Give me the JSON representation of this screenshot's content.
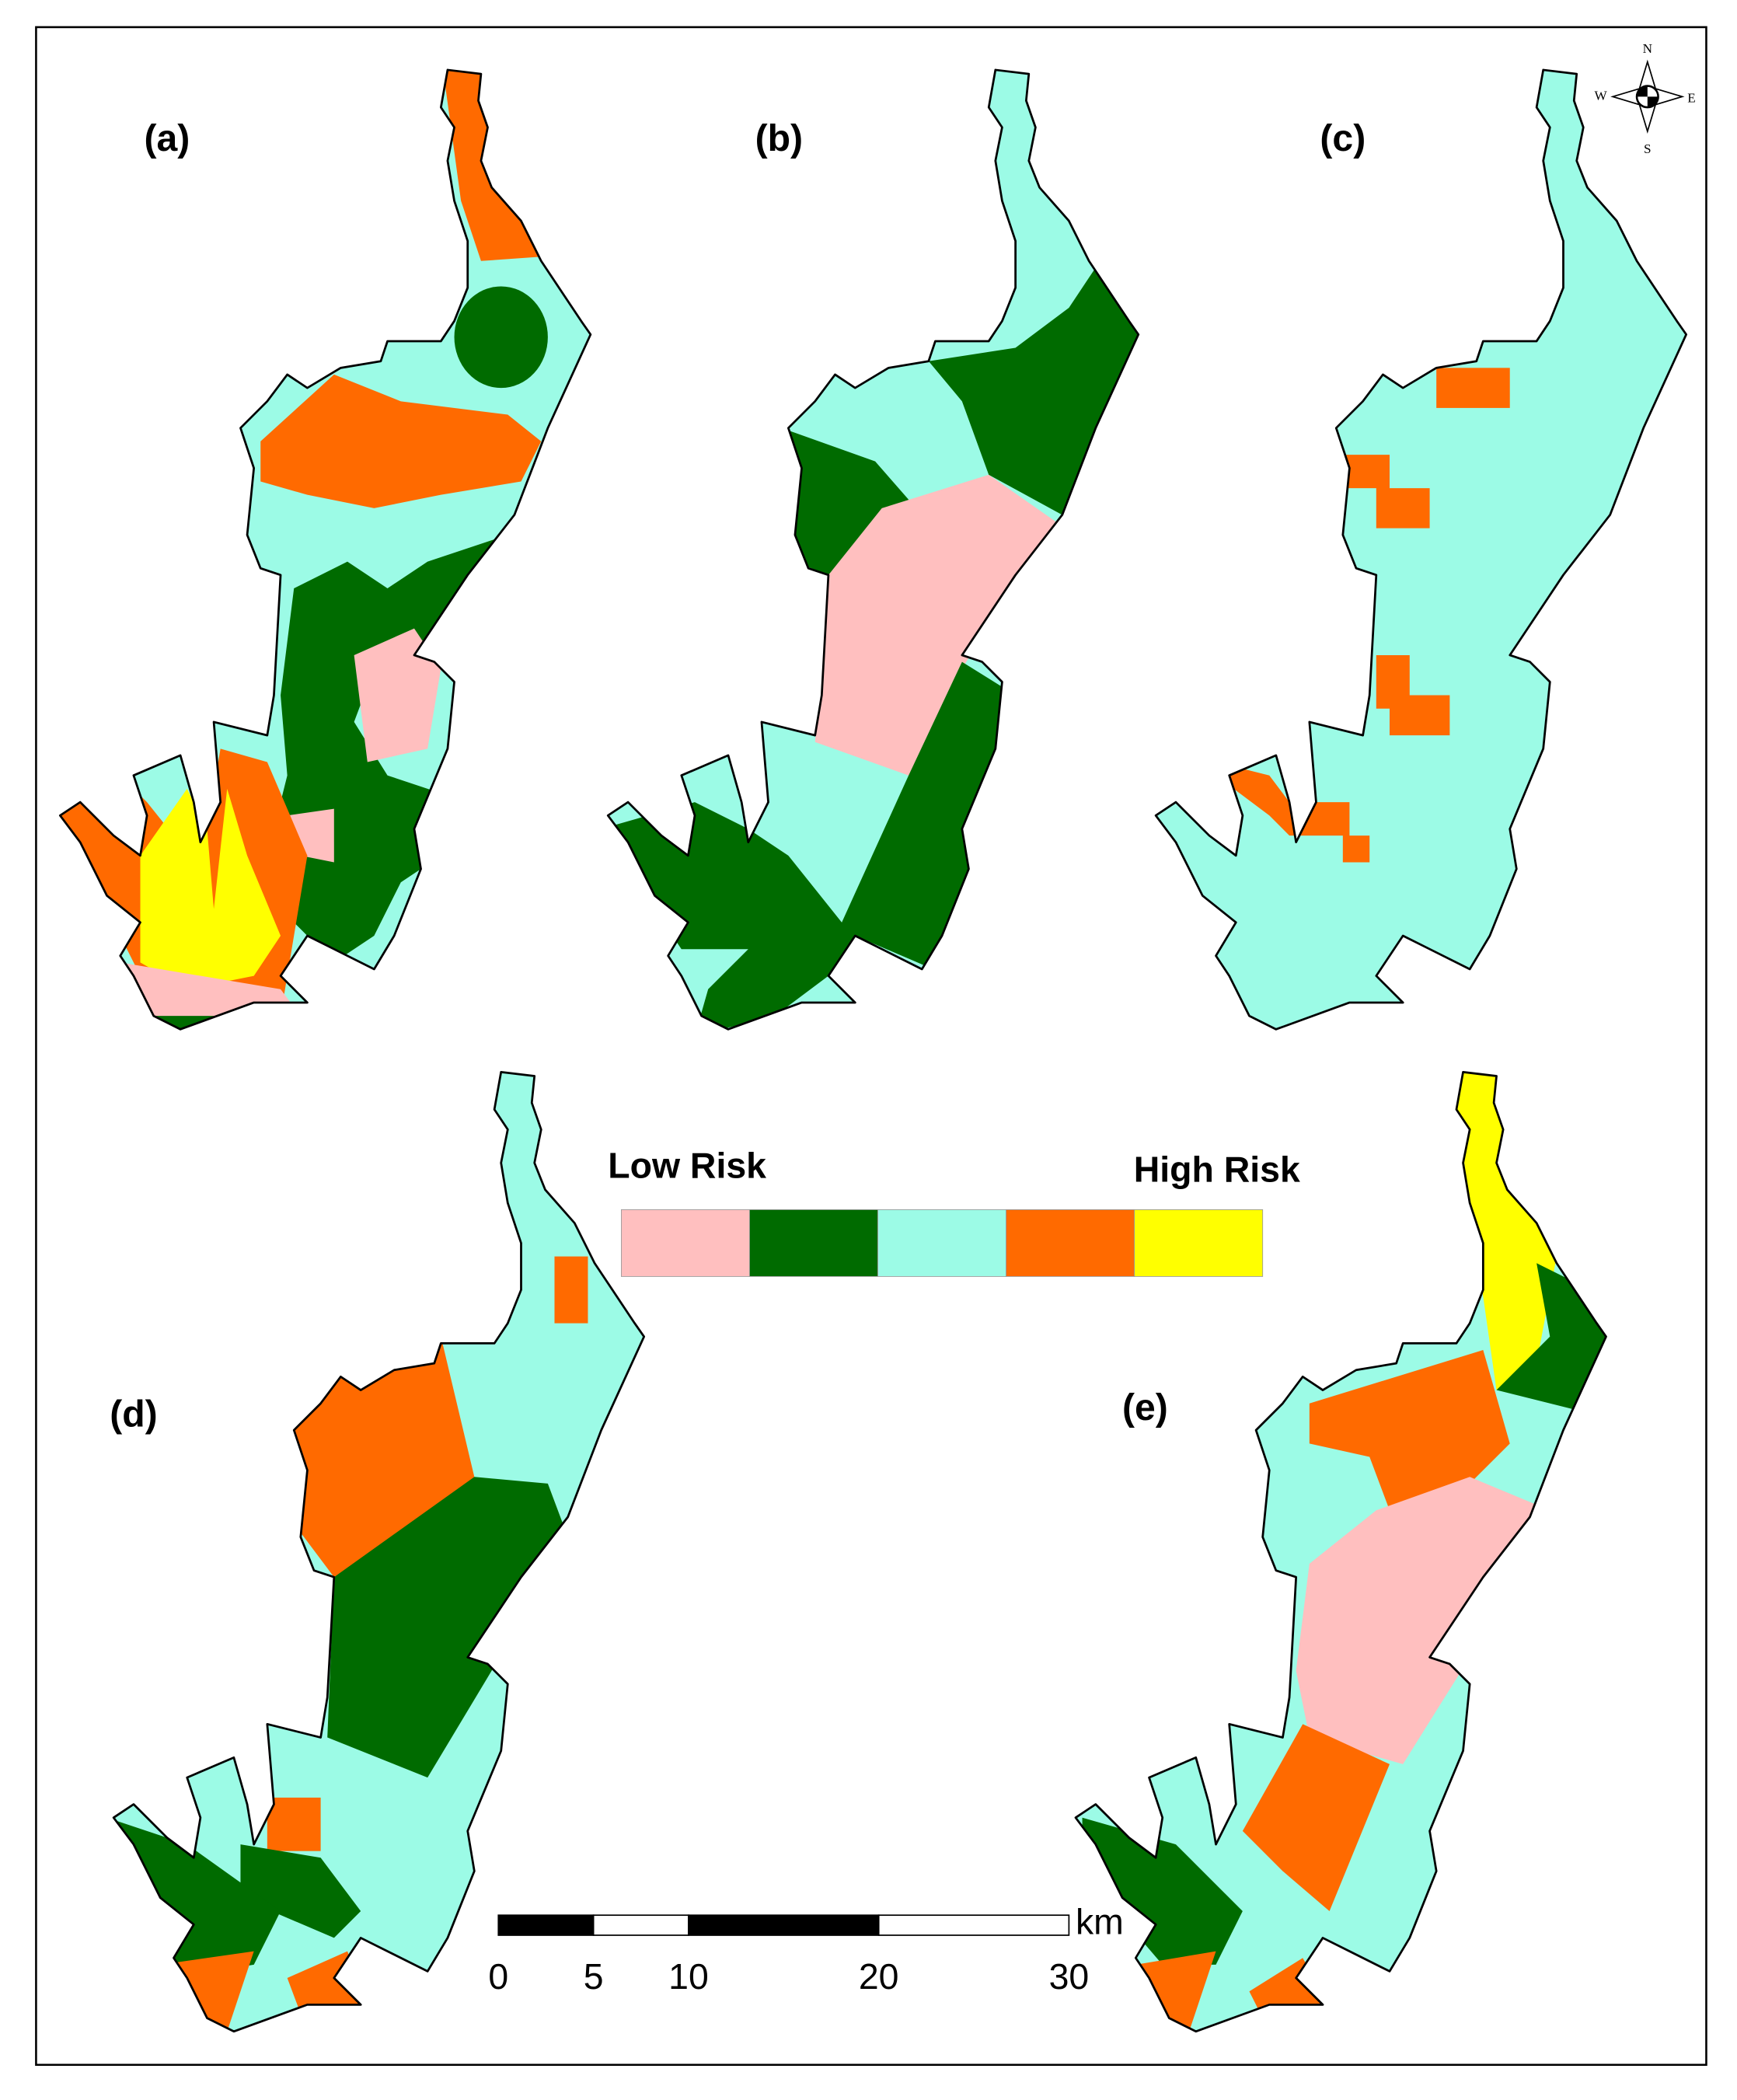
{
  "panels": [
    {
      "label": "(a)"
    },
    {
      "label": "(b)"
    },
    {
      "label": "(c)"
    },
    {
      "label": "(d)"
    },
    {
      "label": "(e)"
    }
  ],
  "legend": {
    "low_label": "Low Risk",
    "high_label": "High Risk",
    "colors": [
      "#ffbfbf",
      "#006b00",
      "#9cfbe6",
      "#ff6a00",
      "#ffff00"
    ]
  },
  "scale_bar": {
    "ticks": [
      0,
      5,
      10,
      20,
      30
    ],
    "unit": "km"
  },
  "compass": {
    "north": "N",
    "south": "S",
    "east": "E",
    "west": "W"
  }
}
